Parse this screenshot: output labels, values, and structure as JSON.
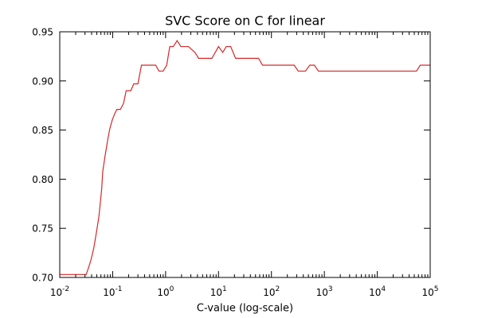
{
  "chart_data": {
    "type": "line",
    "title": "SVC Score on C for linear",
    "xlabel": "C-value (log-scale)",
    "ylabel": "",
    "x_scale": "log",
    "xlim": [
      0.01,
      100000
    ],
    "ylim": [
      0.7,
      0.95
    ],
    "grid": false,
    "x_ticks": [
      {
        "base": "10",
        "exp": "-2"
      },
      {
        "base": "10",
        "exp": "-1"
      },
      {
        "base": "10",
        "exp": "0"
      },
      {
        "base": "10",
        "exp": "1"
      },
      {
        "base": "10",
        "exp": "2"
      },
      {
        "base": "10",
        "exp": "3"
      },
      {
        "base": "10",
        "exp": "4"
      },
      {
        "base": "10",
        "exp": "5"
      }
    ],
    "y_ticks": [
      "0.70",
      "0.75",
      "0.80",
      "0.85",
      "0.90",
      "0.95"
    ],
    "series": [
      {
        "color": "#d62728",
        "points": [
          [
            0.01,
            0.703
          ],
          [
            0.0316,
            0.703
          ],
          [
            0.035,
            0.71
          ],
          [
            0.039,
            0.718
          ],
          [
            0.044,
            0.73
          ],
          [
            0.049,
            0.745
          ],
          [
            0.055,
            0.762
          ],
          [
            0.062,
            0.79
          ],
          [
            0.065,
            0.808
          ],
          [
            0.072,
            0.824
          ],
          [
            0.08,
            0.839
          ],
          [
            0.088,
            0.851
          ],
          [
            0.098,
            0.86
          ],
          [
            0.11,
            0.867
          ],
          [
            0.12,
            0.871
          ],
          [
            0.14,
            0.871
          ],
          [
            0.16,
            0.877
          ],
          [
            0.18,
            0.89
          ],
          [
            0.22,
            0.89
          ],
          [
            0.25,
            0.897
          ],
          [
            0.3,
            0.897
          ],
          [
            0.35,
            0.916
          ],
          [
            0.65,
            0.916
          ],
          [
            0.75,
            0.91
          ],
          [
            0.9,
            0.91
          ],
          [
            1.05,
            0.916
          ],
          [
            1.2,
            0.935
          ],
          [
            1.4,
            0.935
          ],
          [
            1.65,
            0.941
          ],
          [
            1.95,
            0.935
          ],
          [
            2.7,
            0.935
          ],
          [
            3.6,
            0.929
          ],
          [
            4.2,
            0.923
          ],
          [
            7.5,
            0.923
          ],
          [
            10,
            0.935
          ],
          [
            12,
            0.929
          ],
          [
            14,
            0.935
          ],
          [
            17,
            0.935
          ],
          [
            21,
            0.923
          ],
          [
            57,
            0.923
          ],
          [
            68,
            0.916
          ],
          [
            270,
            0.916
          ],
          [
            320,
            0.91
          ],
          [
            440,
            0.91
          ],
          [
            530,
            0.916
          ],
          [
            650,
            0.916
          ],
          [
            770,
            0.91
          ],
          [
            55000,
            0.91
          ],
          [
            65000,
            0.916
          ],
          [
            100000,
            0.916
          ]
        ]
      }
    ]
  }
}
